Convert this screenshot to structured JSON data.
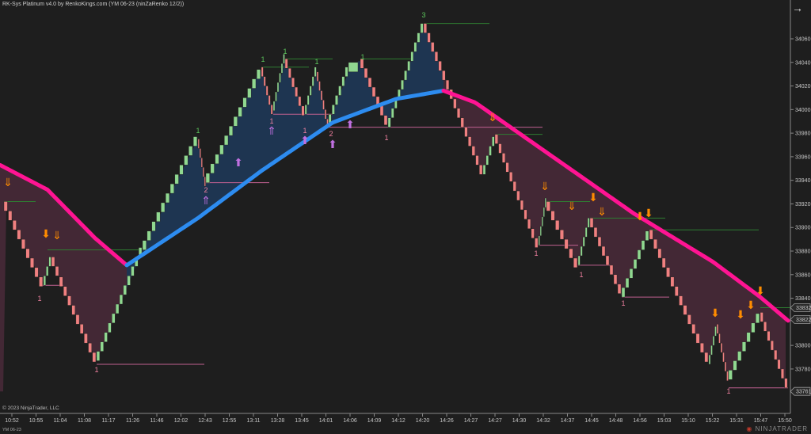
{
  "window": {
    "title": "RK-Sys Platinum v4.0 by RenkoKings.com (YM 06-23 (ninZaRenko 12/2))",
    "copyright": "© 2023 NinjaTrader, LLC",
    "instrument": "YM 06-23",
    "logo": "NINJATRADER",
    "logo_icon": "ninjatrader-logo-icon",
    "nav_icon": "arrow-right-icon"
  },
  "chart_data": {
    "type": "bar",
    "subtype": "renko",
    "instrument": "YM 06-23",
    "x_ticks": [
      "10:52",
      "10:55",
      "11:04",
      "11:08",
      "11:17",
      "11:26",
      "11:46",
      "12:02",
      "12:43",
      "12:55",
      "13:11",
      "13:28",
      "13:45",
      "14:01",
      "14:06",
      "14:09",
      "14:12",
      "14:20",
      "14:26",
      "14:27",
      "14:27",
      "14:30",
      "14:32",
      "14:37",
      "14:45",
      "14:48",
      "14:56",
      "15:03",
      "15:10",
      "15:22",
      "15:31",
      "15:47",
      "15:50"
    ],
    "y_ticks": [
      34060,
      34040,
      34020,
      34000,
      33980,
      33960,
      33940,
      33920,
      33900,
      33880,
      33860,
      33840,
      33800,
      33780
    ],
    "ylim": [
      33752,
      34095
    ],
    "brick_size": 8,
    "price_pivots": [
      33922,
      33851,
      33875,
      33858,
      33787,
      33881,
      33975,
      33938,
      34036,
      33999,
      34043,
      33996,
      34032,
      33988,
      34032,
      34043,
      33985,
      34073,
      33945,
      33979,
      33885,
      33922,
      33868,
      33908,
      33841,
      33898,
      33784,
      33818,
      33771,
      33828,
      33761
    ],
    "moving_average": {
      "up_color": "#2d8cf0",
      "down_color": "#ff1493",
      "values": [
        33953,
        33932,
        33891,
        33868,
        33908,
        33948,
        33989,
        34009,
        34016,
        34006,
        33959,
        33912,
        33871,
        33841,
        33821
      ]
    },
    "price_markers": [
      {
        "value": "33832",
        "color": "#2e7d32"
      },
      {
        "value": "33822",
        "color": "#ff1493"
      },
      {
        "value": "33761",
        "color": "#888"
      }
    ],
    "colors": {
      "up": "#90d890",
      "down": "#f08080",
      "background": "#1e1e1e",
      "cloud_up": "#1f3a5a",
      "cloud_down": "#4a2a3a"
    },
    "annotations": [
      "1",
      "1",
      "2",
      "1",
      "1",
      "2",
      "1",
      "3",
      "1",
      "1",
      "1",
      "1",
      "1",
      "1",
      "1",
      "1",
      "1"
    ],
    "grid": false
  }
}
